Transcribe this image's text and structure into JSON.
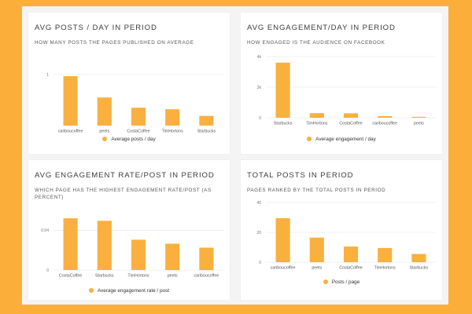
{
  "accent_color": "#f9b03f",
  "background_color": "#fcae3a",
  "chart_data": [
    {
      "type": "bar",
      "title": "AVG POSTS / DAY IN PERIOD",
      "subtitle": "HOW MANY POSTS THE PAGES PUBLISHED ON AVERAGE",
      "categories": [
        "cariboucoffee",
        "peets",
        "CostaCoffee",
        "TimHortons",
        "Starbucks"
      ],
      "series": [
        {
          "name": "Average posts / day",
          "values": [
            0.97,
            0.55,
            0.35,
            0.32,
            0.19
          ]
        }
      ],
      "ylim": [
        0,
        1.2
      ],
      "yticks": [
        1
      ],
      "ytick_labels": [
        "1"
      ],
      "grid": true,
      "legend": "bottom"
    },
    {
      "type": "bar",
      "title": "AVG ENGAGEMENT/DAY IN PERIOD",
      "subtitle": "HOW ENGAGED IS THE AUDIENCE ON FACEBOOK",
      "categories": [
        "Starbucks",
        "TimHortons",
        "CostaCoffee",
        "cariboucoffee",
        "peets"
      ],
      "series": [
        {
          "name": "Average engagement / day",
          "values": [
            3600,
            300,
            290,
            110,
            60
          ]
        }
      ],
      "ylim": [
        0,
        4000
      ],
      "yticks": [
        0,
        2000,
        4000
      ],
      "ytick_labels": [
        "0",
        "2k",
        "4k"
      ],
      "grid": true,
      "legend": "bottom"
    },
    {
      "type": "bar",
      "title": "AVG ENGAGEMENT RATE/POST IN PERIOD",
      "subtitle": "WHICH PAGE HAS THE HIGHEST ENGAGEMENT RATE/POST (AS PERCENT)",
      "categories": [
        "CostaCoffee",
        "Starbucks",
        "TimHortons",
        "peets",
        "cariboucoffee"
      ],
      "series": [
        {
          "name": "Average engagement rate / post",
          "values": [
            0.052,
            0.0495,
            0.0305,
            0.0265,
            0.0225
          ]
        }
      ],
      "ylim": [
        0,
        0.06
      ],
      "yticks": [
        0,
        0.04
      ],
      "ytick_labels": [
        "0",
        "0.04"
      ],
      "grid": true,
      "legend": "bottom"
    },
    {
      "type": "bar",
      "title": "TOTAL POSTS IN PERIOD",
      "subtitle": "PAGES RANKED BY THE TOTAL POSTS IN PERIOD",
      "categories": [
        "cariboucoffee",
        "peets",
        "CostaCoffee",
        "TimHortons",
        "Starbucks"
      ],
      "series": [
        {
          "name": "Posts / page",
          "values": [
            29.5,
            16.5,
            10.5,
            9.5,
            5.5
          ]
        }
      ],
      "ylim": [
        0,
        40
      ],
      "yticks": [
        0,
        20,
        40
      ],
      "ytick_labels": [
        "0",
        "20",
        "40"
      ],
      "grid": true,
      "legend": "bottom"
    }
  ]
}
